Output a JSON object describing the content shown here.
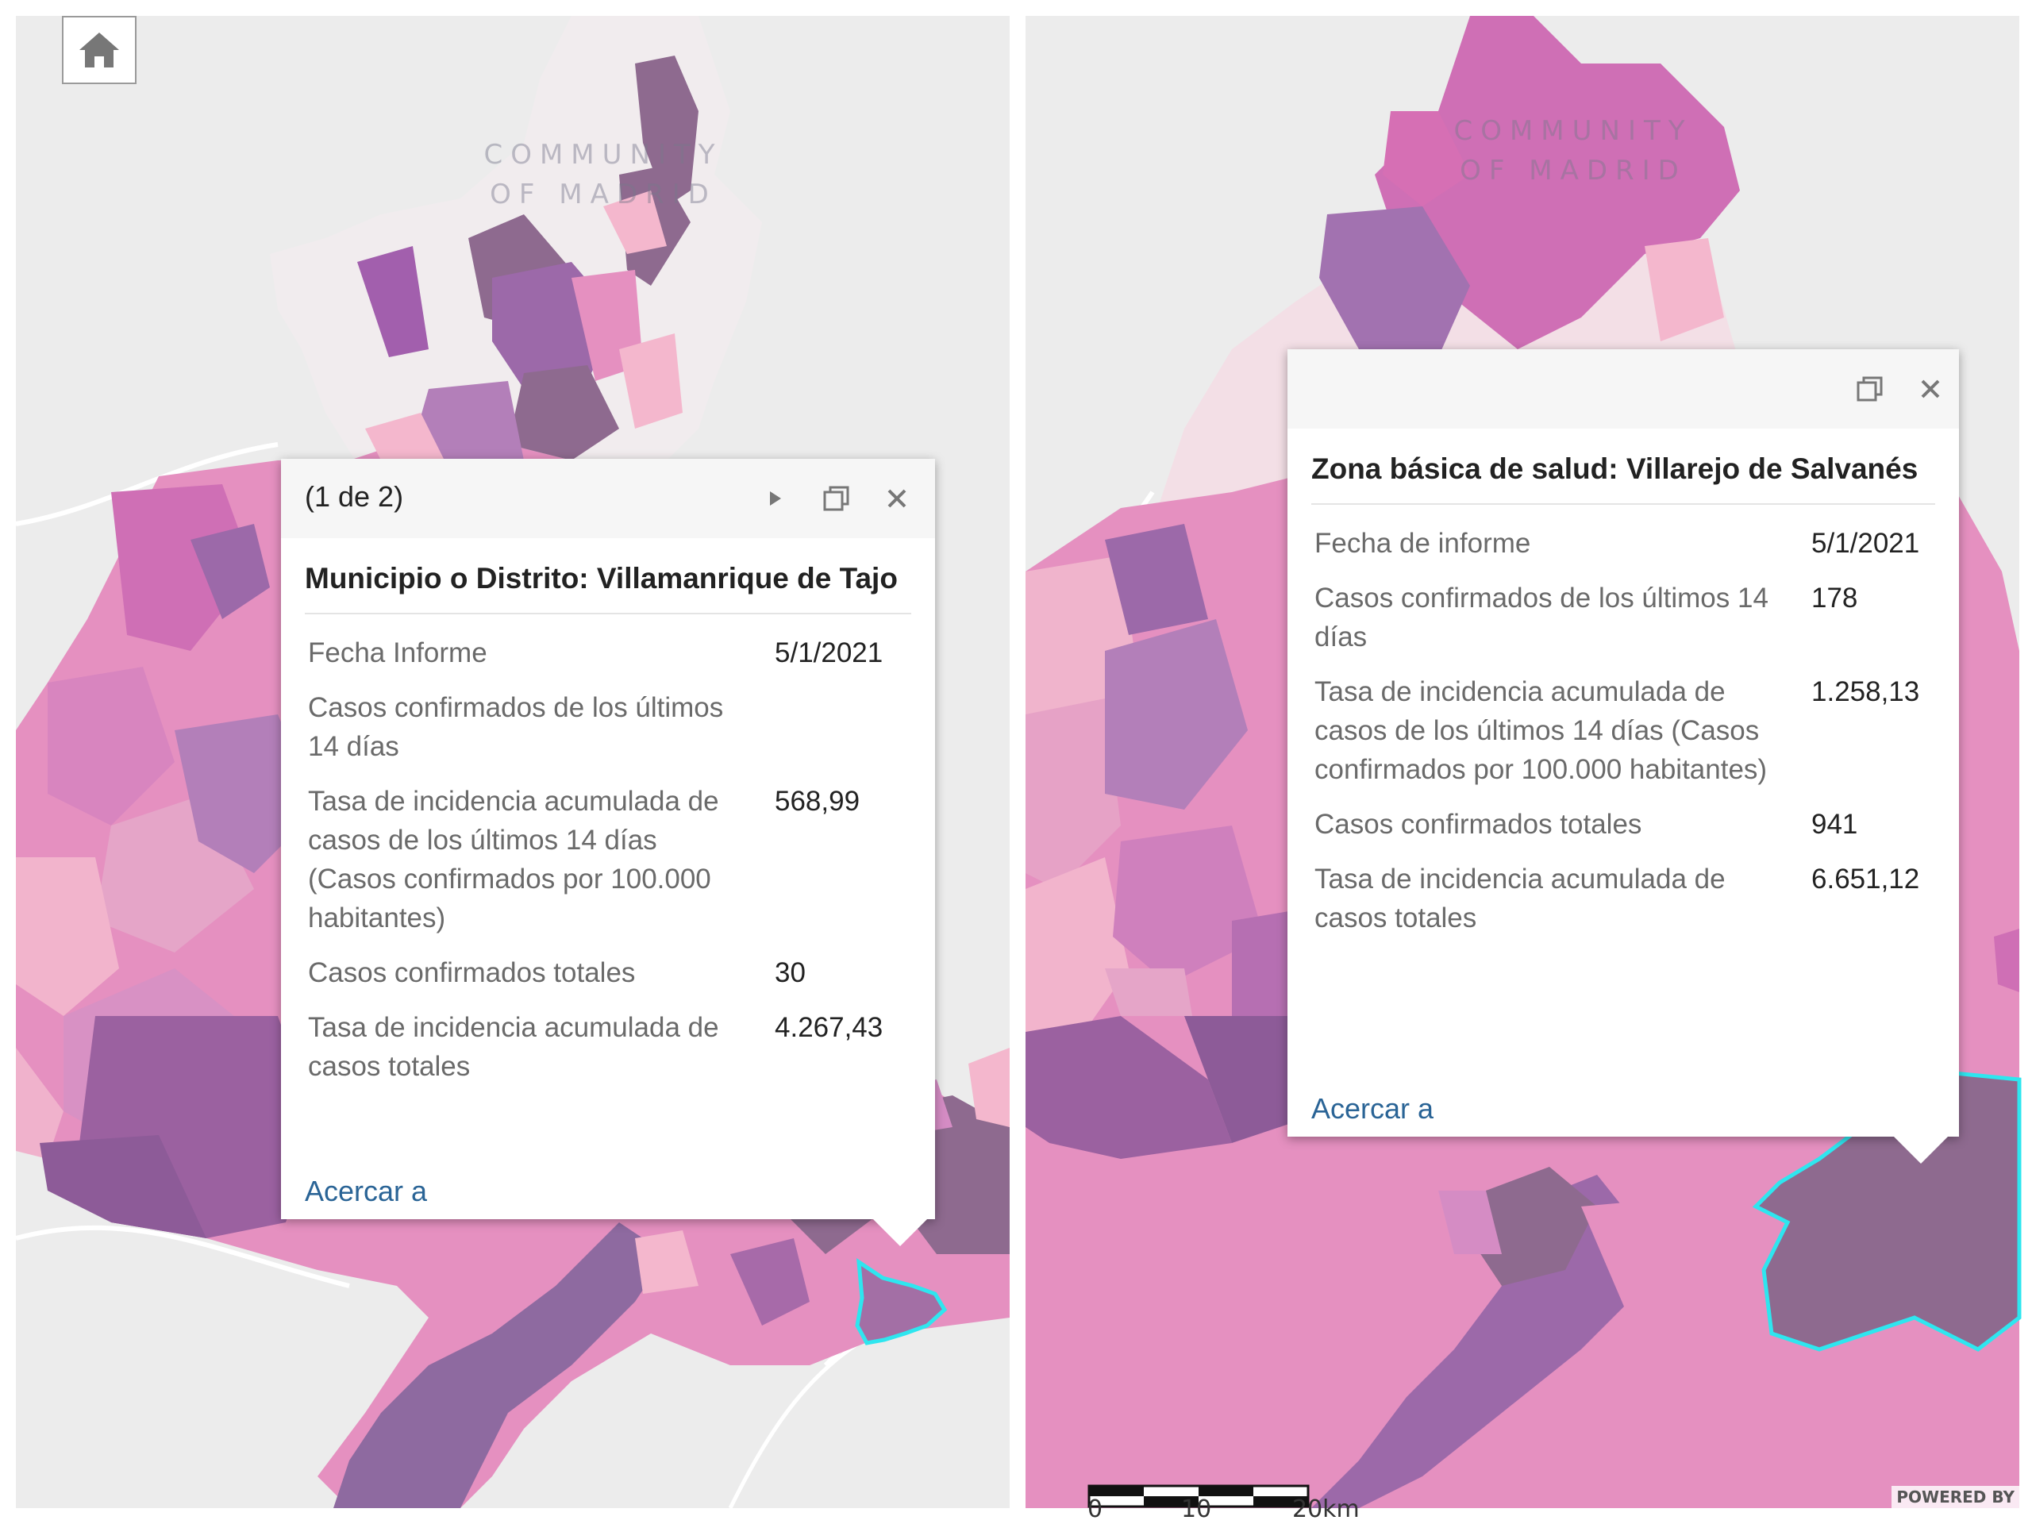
{
  "colors": {
    "map_background": "#ececec",
    "road": "#ffffff",
    "light_region": "#f1ecee",
    "pink_light": "#f4b7cd",
    "pink": "#e590c0",
    "magenta": "#cf6fb5",
    "purple": "#ae77b6",
    "dark_mauve": "#8e6a8f",
    "highlight_outline": "#2ee6ef",
    "link": "#2a6496"
  },
  "left": {
    "watermark_line1": "COMMUNITY",
    "watermark_line2": "OF MADRID",
    "home_icon": "home-icon",
    "popup": {
      "pagination": "(1 de 2)",
      "next_icon": "play-next-icon",
      "maximize_icon": "maximize-icon",
      "close_icon": "close-icon",
      "title": "Municipio o Distrito: Villamanrique de Tajo",
      "rows": [
        {
          "label": "Fecha Informe",
          "value": "5/1/2021"
        },
        {
          "label": "Casos confirmados de los últimos 14 días",
          "value": ""
        },
        {
          "label": "Tasa de incidencia acumulada de casos de los últimos 14 días (Casos confirmados por 100.000 habitantes)",
          "value": "568,99"
        },
        {
          "label": "Casos confirmados totales",
          "value": "30"
        },
        {
          "label": "Tasa de incidencia acumulada de casos totales",
          "value": "4.267,43"
        }
      ],
      "zoom_link": "Acercar a"
    }
  },
  "right": {
    "watermark_line1": "COMMUNITY",
    "watermark_line2": "OF MADRID",
    "popup": {
      "maximize_icon": "maximize-icon",
      "close_icon": "close-icon",
      "title": "Zona básica de salud: Villarejo de Salvanés",
      "rows": [
        {
          "label": "Fecha de informe",
          "value": "5/1/2021"
        },
        {
          "label": "Casos confirmados de los últimos 14 días",
          "value": "178"
        },
        {
          "label": "Tasa de incidencia acumulada de casos de los últimos 14 días (Casos confirmados por 100.000 habitantes)",
          "value": "1.258,13"
        },
        {
          "label": "Casos confirmados totales",
          "value": "941"
        },
        {
          "label": "Tasa de incidencia acumulada de casos totales",
          "value": "6.651,12"
        }
      ],
      "zoom_link": "Acercar a"
    },
    "scale_labels": [
      "0",
      "10",
      "20km"
    ],
    "powered_by": "POWERED BY"
  }
}
